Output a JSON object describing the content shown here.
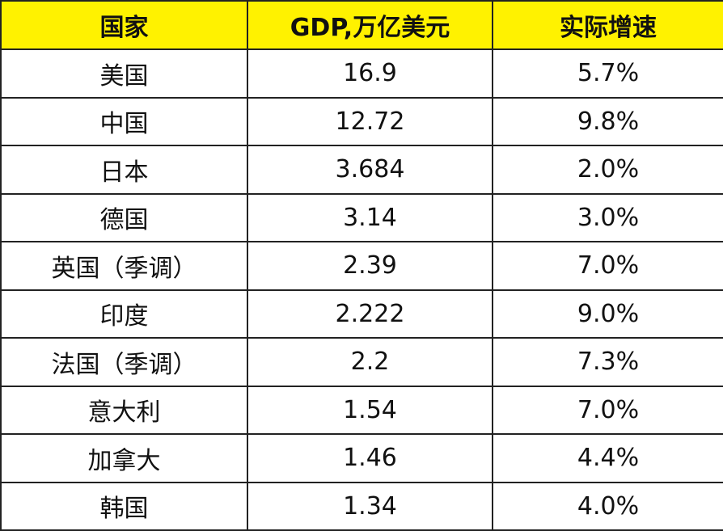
{
  "table": {
    "header": [
      "国家",
      "GDP,万亿美元",
      "实际增速"
    ],
    "rows": [
      [
        "美国",
        "16.9",
        "5.7%"
      ],
      [
        "中国",
        "12.72",
        "9.8%"
      ],
      [
        "日本",
        "3.684",
        "2.0%"
      ],
      [
        "德国",
        "3.14",
        "3.0%"
      ],
      [
        "英国（季调）",
        "2.39",
        "7.0%"
      ],
      [
        "印度",
        "2.222",
        "9.0%"
      ],
      [
        "法国（季调）",
        "2.2",
        "7.3%"
      ],
      [
        "意大利",
        "1.54",
        "7.0%"
      ],
      [
        "加拿大",
        "1.46",
        "4.4%"
      ],
      [
        "韩国",
        "1.34",
        "4.0%"
      ]
    ]
  }
}
